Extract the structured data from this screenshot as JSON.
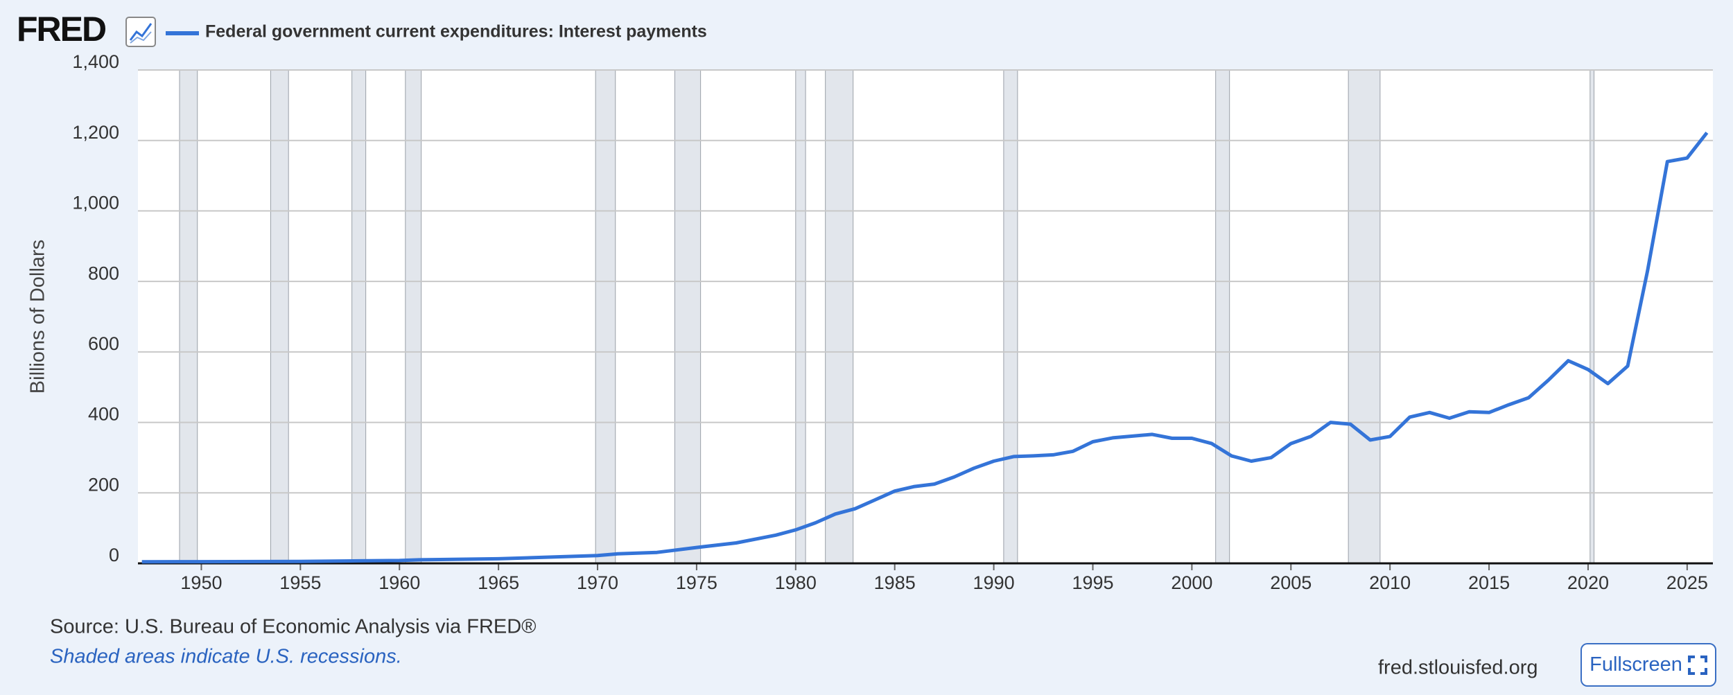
{
  "chart_data": {
    "type": "line",
    "logo": "FRED",
    "title": "Federal government current expenditures: Interest payments",
    "y_label": "Billions of Dollars",
    "source": "Source: U.S. Bureau of Economic Analysis via FRED®",
    "note": "Shaded areas indicate U.S. recessions.",
    "site": "fred.stlouisfed.org",
    "button": "Fullscreen",
    "legend": "top-left",
    "grid": true,
    "log_scale": false,
    "x": [
      1947,
      1950,
      1955,
      1958,
      1960,
      1961,
      1965,
      1970,
      1971,
      1973,
      1975,
      1977,
      1979,
      1980,
      1981,
      1982,
      1983,
      1984,
      1985,
      1986,
      1987,
      1988,
      1989,
      1990,
      1991,
      1992,
      1993,
      1994,
      1995,
      1996,
      1997,
      1998,
      1999,
      2000,
      2001,
      2002,
      2003,
      2004,
      2005,
      2006,
      2007,
      2008,
      2009,
      2010,
      2011,
      2012,
      2013,
      2014,
      2015,
      2016,
      2017,
      2018,
      2019,
      2020,
      2021,
      2022,
      2023,
      2024,
      2025,
      2026
    ],
    "series": [
      {
        "name": "Federal government current expenditures: Interest payments",
        "color": "#3474d8",
        "values": [
          4.5,
          4.8,
          5.5,
          7,
          8,
          10,
          13,
          22,
          27,
          31,
          45,
          58,
          80,
          95,
          115,
          140,
          155,
          180,
          205,
          218,
          225,
          245,
          270,
          290,
          303,
          305,
          308,
          318,
          345,
          356,
          361,
          366,
          355,
          355,
          340,
          305,
          290,
          300,
          340,
          360,
          400,
          395,
          350,
          360,
          415,
          428,
          412,
          430,
          428,
          450,
          470,
          520,
          575,
          550,
          510,
          560,
          830,
          1140,
          1150,
          1222
        ]
      }
    ],
    "recessions": [
      [
        1948.9,
        1949.8
      ],
      [
        1953.5,
        1954.4
      ],
      [
        1957.6,
        1958.3
      ],
      [
        1960.3,
        1961.1
      ],
      [
        1969.9,
        1970.9
      ],
      [
        1973.9,
        1975.2
      ],
      [
        1980.0,
        1980.5
      ],
      [
        1981.5,
        1982.9
      ],
      [
        1990.5,
        1991.2
      ],
      [
        2001.2,
        2001.9
      ],
      [
        2007.9,
        2009.5
      ],
      [
        2020.1,
        2020.3
      ]
    ],
    "xlim": [
      1946.8,
      2026.3
    ],
    "xticks": [
      1950,
      1955,
      1960,
      1965,
      1970,
      1975,
      1980,
      1985,
      1990,
      1995,
      2000,
      2005,
      2010,
      2015,
      2020,
      2025
    ],
    "ylim": [
      0,
      1400
    ],
    "yticks": [
      0,
      200,
      400,
      600,
      800,
      {
        "value": 1000,
        "label": "1,000"
      },
      {
        "value": 1200,
        "label": "1,200"
      },
      {
        "value": 1400,
        "label": "1,400"
      }
    ]
  }
}
